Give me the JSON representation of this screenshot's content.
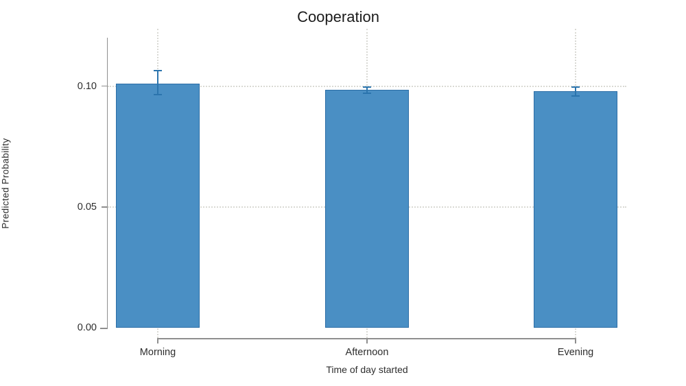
{
  "chart_data": {
    "type": "bar",
    "title": "Cooperation",
    "xlabel": "Time of day started",
    "ylabel": "Predicted Probability",
    "categories": [
      "Morning",
      "Afternoon",
      "Evening"
    ],
    "values": [
      0.101,
      0.0985,
      0.098
    ],
    "error_bars": {
      "low": [
        0.0965,
        0.097,
        0.096
      ],
      "high": [
        0.1065,
        0.0995,
        0.0995
      ]
    },
    "ylim": [
      0,
      0.12
    ],
    "yticks": [
      {
        "value": 0.0,
        "label": "0.00"
      },
      {
        "value": 0.05,
        "label": "0.05"
      },
      {
        "value": 0.1,
        "label": "0.10"
      }
    ],
    "grid": {
      "horizontal_dotted_at": [
        0.05,
        0.1
      ],
      "vertical_dotted_at_categories": true
    },
    "legend": "none",
    "colors": {
      "bar_fill": "#4a8fc4",
      "bar_border": "#2b6da6",
      "error_bar": "#2b74ad",
      "axis": "#8e8e8e",
      "gridline": "#d9d9d4",
      "text": "#2d2d2d",
      "title": "#1b1b1b",
      "background": "#ffffff"
    }
  }
}
